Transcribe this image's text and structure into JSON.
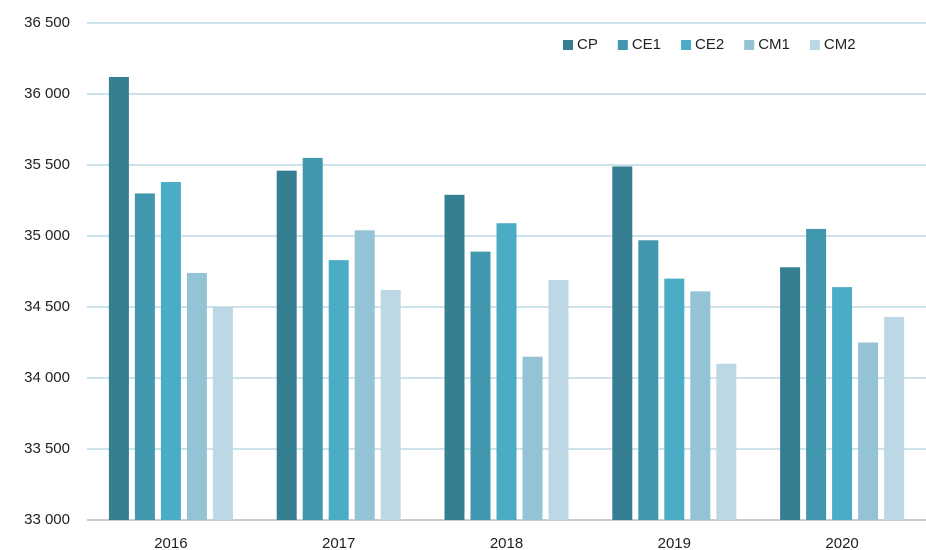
{
  "chart_data": {
    "type": "bar",
    "categories": [
      "2016",
      "2017",
      "2018",
      "2019",
      "2020"
    ],
    "series": [
      {
        "name": "CP",
        "color": "#367f93",
        "values": [
          36120,
          35460,
          35290,
          35490,
          34780
        ]
      },
      {
        "name": "CE1",
        "color": "#4198ae",
        "values": [
          35300,
          35550,
          34890,
          34970,
          35050
        ]
      },
      {
        "name": "CE2",
        "color": "#4bacc6",
        "values": [
          35380,
          34830,
          35090,
          34700,
          34640
        ]
      },
      {
        "name": "CM1",
        "color": "#93c3d5",
        "values": [
          34740,
          35040,
          34150,
          34610,
          34250
        ]
      },
      {
        "name": "CM2",
        "color": "#bcd8e4",
        "values": [
          34500,
          34620,
          34690,
          34100,
          34430
        ]
      }
    ],
    "ylim": [
      33000,
      36500
    ],
    "yticks": [
      {
        "value": 33000,
        "label": "33 000"
      },
      {
        "value": 33500,
        "label": "33 500"
      },
      {
        "value": 34000,
        "label": "34 000"
      },
      {
        "value": 34500,
        "label": "34 500"
      },
      {
        "value": 35000,
        "label": "35 000"
      },
      {
        "value": 35500,
        "label": "35 500"
      },
      {
        "value": 36000,
        "label": "36 000"
      },
      {
        "value": 36500,
        "label": "36 500"
      }
    ],
    "grid": true,
    "legend": "top-right"
  }
}
